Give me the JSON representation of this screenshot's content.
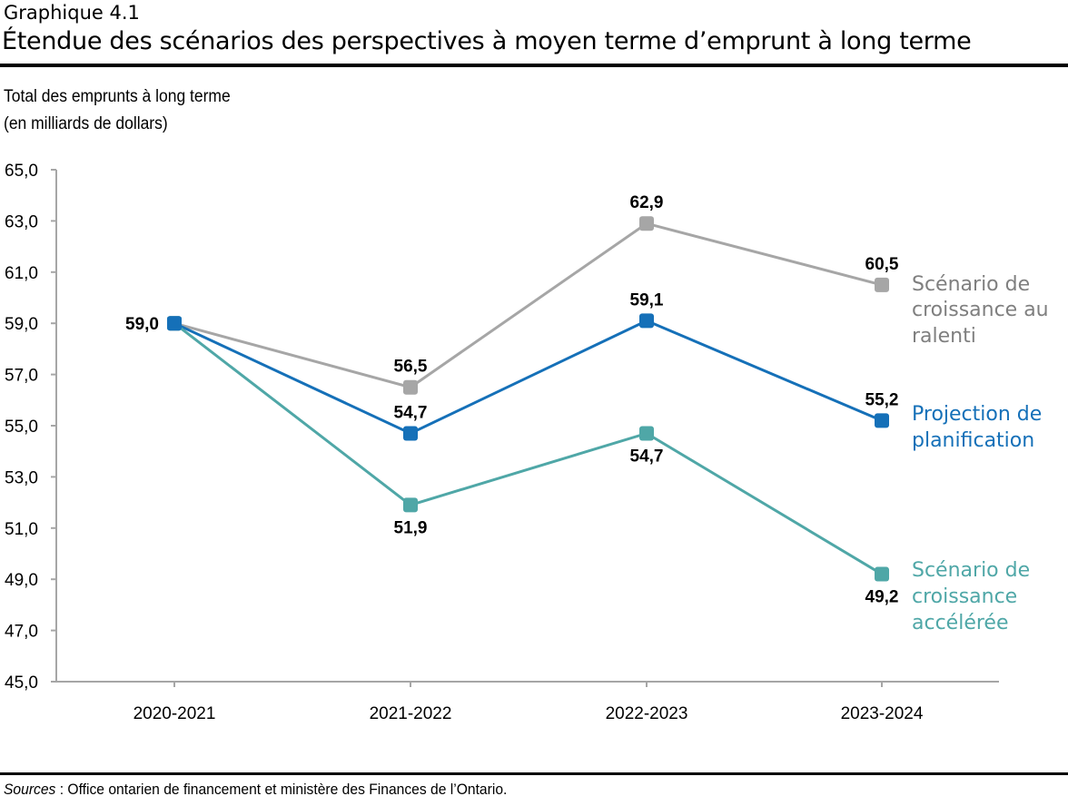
{
  "kicker": "Graphique 4.1",
  "title": "Étendue des scénarios des perspectives à moyen terme d’emprunt à long terme",
  "sources_label": "Sources",
  "sources_text": " : Office ontarien de financement et ministère des Finances de l’Ontario.",
  "chart_data": {
    "type": "line",
    "ylabel": [
      "Total des emprunts à long terme",
      "(en milliards de dollars)"
    ],
    "xlabel": "",
    "categories": [
      "2020-2021",
      "2021-2022",
      "2022-2023",
      "2023-2024"
    ],
    "ylim": [
      45,
      65
    ],
    "yticks": [
      45,
      47,
      49,
      51,
      53,
      55,
      57,
      59,
      61,
      63,
      65
    ],
    "ytick_labels": [
      "45,0",
      "47,0",
      "49,0",
      "51,0",
      "53,0",
      "55,0",
      "57,0",
      "59,0",
      "61,0",
      "63,0",
      "65,0"
    ],
    "grid": false,
    "legend": "right, inline labels",
    "series": [
      {
        "name": "Scénario de croissance au ralenti",
        "legend_lines": [
          "Scénario de",
          "croissance au",
          "ralenti"
        ],
        "color": "#a6a6a6",
        "text_color": "#7f7f7f",
        "values": [
          59.0,
          56.5,
          62.9,
          60.5
        ],
        "labels": [
          "",
          "56,5",
          "62,9",
          "60,5"
        ]
      },
      {
        "name": "Projection de planification",
        "legend_lines": [
          "Projection de",
          "planification"
        ],
        "color": "#1570b8",
        "text_color": "#1570b8",
        "values": [
          59.0,
          54.7,
          59.1,
          55.2
        ],
        "labels": [
          "59,0",
          "54,7",
          "59,1",
          "55,2"
        ]
      },
      {
        "name": "Scénario de croissance accélérée",
        "legend_lines": [
          "Scénario de",
          "croissance",
          "accélérée"
        ],
        "color": "#4fa7a7",
        "text_color": "#4fa7a7",
        "values": [
          59.0,
          51.9,
          54.7,
          49.2
        ],
        "labels": [
          "",
          "51,9",
          "54,7",
          "49,2"
        ]
      }
    ]
  }
}
